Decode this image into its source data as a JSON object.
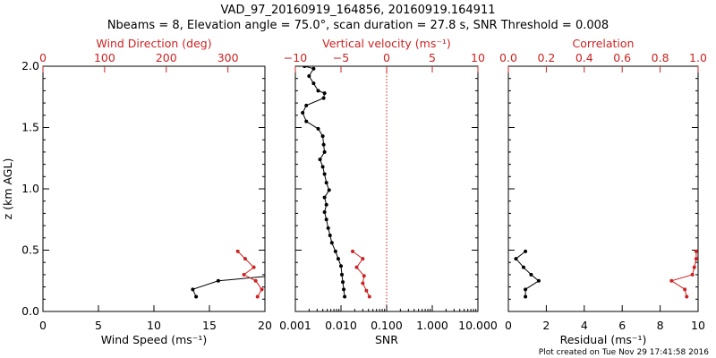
{
  "header": {
    "line1": "VAD_97_20160919_164856, 20160919.164911",
    "line2": "Nbeams = 8, Elevation angle = 75.0°, scan duration = 27.8 s, SNR Threshold = 0.008"
  },
  "footer": "Plot created on Tue Nov 29 17:41:58 2016",
  "colors": {
    "primary": "#000000",
    "secondary": "#cc2222"
  },
  "chart_data": [
    {
      "type": "line",
      "id": "wind",
      "ylabel": "z (km AGL)",
      "ylim": [
        0,
        2.0
      ],
      "yticks": [
        0.0,
        0.5,
        1.0,
        1.5,
        2.0
      ],
      "ytick_labels": [
        "0.0",
        "0.5",
        "1.0",
        "1.5",
        "2.0"
      ],
      "xlabel": "Wind Speed (ms⁻¹)",
      "xlim": [
        0,
        20
      ],
      "xticks": [
        0,
        5,
        10,
        15,
        20
      ],
      "xtick_labels": [
        "0",
        "5",
        "10",
        "15",
        "20"
      ],
      "x2label": "Wind Direction (deg)",
      "x2lim": [
        0,
        360
      ],
      "x2ticks": [
        0,
        100,
        200,
        300
      ],
      "x2tick_labels": [
        "0",
        "100",
        "200",
        "300"
      ],
      "series": [
        {
          "axis": "bottom",
          "color": "#000000",
          "points": [
            [
              13.8,
              0.12
            ],
            [
              13.5,
              0.18
            ],
            [
              15.8,
              0.25
            ],
            [
              20.5,
              0.29
            ]
          ]
        },
        {
          "axis": "top",
          "color": "#cc2222",
          "points": [
            [
              348,
              0.12
            ],
            [
              355,
              0.18
            ],
            [
              345,
              0.25
            ],
            [
              326,
              0.3
            ],
            [
              342,
              0.36
            ],
            [
              328,
              0.43
            ],
            [
              316,
              0.49
            ]
          ]
        }
      ]
    },
    {
      "type": "line",
      "id": "vertical",
      "ylim": [
        0,
        2.0
      ],
      "yticks": [
        0.0,
        0.5,
        1.0,
        1.5,
        2.0
      ],
      "xlabel": "SNR",
      "xscale": "log",
      "xlim": [
        0.001,
        10
      ],
      "xticks": [
        0.001,
        0.01,
        0.1,
        1,
        10
      ],
      "xtick_labels": [
        "0.001",
        "0.010",
        "0.100",
        "1.000",
        "10.000"
      ],
      "x2label": "Vertical velocity (ms⁻¹)",
      "x2lim": [
        -10,
        10
      ],
      "x2ticks": [
        -10,
        -5,
        0,
        5,
        10
      ],
      "x2tick_labels": [
        "−10",
        "−5",
        "0",
        "5",
        "10"
      ],
      "zero_line": 0,
      "series": [
        {
          "axis": "top",
          "color": "#000000",
          "points": [
            [
              -4.6,
              0.12
            ],
            [
              -4.7,
              0.18
            ],
            [
              -4.8,
              0.24
            ],
            [
              -4.9,
              0.3
            ],
            [
              -5.0,
              0.37
            ],
            [
              -5.3,
              0.43
            ],
            [
              -5.6,
              0.49
            ],
            [
              -6.0,
              0.56
            ],
            [
              -6.2,
              0.62
            ],
            [
              -6.4,
              0.68
            ],
            [
              -6.6,
              0.75
            ],
            [
              -6.8,
              0.81
            ],
            [
              -6.6,
              0.87
            ],
            [
              -6.8,
              0.93
            ],
            [
              -6.3,
              0.99
            ],
            [
              -6.6,
              1.05
            ],
            [
              -6.8,
              1.12
            ],
            [
              -7.0,
              1.18
            ],
            [
              -7.3,
              1.24
            ],
            [
              -6.8,
              1.3
            ],
            [
              -6.9,
              1.36
            ],
            [
              -7.0,
              1.43
            ],
            [
              -7.5,
              1.49
            ],
            [
              -8.8,
              1.55
            ],
            [
              -9.2,
              1.62
            ],
            [
              -8.8,
              1.68
            ],
            [
              -6.9,
              1.74
            ],
            [
              -6.8,
              1.78
            ],
            [
              -7.5,
              1.8
            ],
            [
              -8.0,
              1.86
            ],
            [
              -8.5,
              1.92
            ],
            [
              -8.0,
              1.98
            ],
            [
              -9.0,
              2.0
            ]
          ]
        },
        {
          "axis": "bottom",
          "color": "#cc2222",
          "points": [
            [
              0.042,
              0.12
            ],
            [
              0.036,
              0.17
            ],
            [
              0.03,
              0.23
            ],
            [
              0.032,
              0.29
            ],
            [
              0.022,
              0.36
            ],
            [
              0.03,
              0.43
            ],
            [
              0.018,
              0.49
            ]
          ]
        }
      ]
    },
    {
      "type": "line",
      "id": "residual",
      "ylim": [
        0,
        2.0
      ],
      "yticks": [
        0.0,
        0.5,
        1.0,
        1.5,
        2.0
      ],
      "xlabel": "Residual (ms⁻¹)",
      "xlim": [
        0,
        10
      ],
      "xticks": [
        0,
        2,
        4,
        6,
        8,
        10
      ],
      "xtick_labels": [
        "0",
        "2",
        "4",
        "6",
        "8",
        "10"
      ],
      "x2label": "Correlation",
      "x2lim": [
        0.0,
        1.0
      ],
      "x2ticks": [
        0.0,
        0.2,
        0.4,
        0.6,
        0.8,
        1.0
      ],
      "x2tick_labels": [
        "0.0",
        "0.2",
        "0.4",
        "0.6",
        "0.8",
        "1.0"
      ],
      "series": [
        {
          "axis": "bottom",
          "color": "#000000",
          "points": [
            [
              0.9,
              0.12
            ],
            [
              0.9,
              0.18
            ],
            [
              1.6,
              0.25
            ],
            [
              1.2,
              0.3
            ],
            [
              0.8,
              0.36
            ],
            [
              0.4,
              0.43
            ],
            [
              0.9,
              0.49
            ]
          ]
        },
        {
          "axis": "top",
          "color": "#cc2222",
          "points": [
            [
              0.94,
              0.12
            ],
            [
              0.93,
              0.18
            ],
            [
              0.86,
              0.25
            ],
            [
              0.97,
              0.3
            ],
            [
              0.98,
              0.36
            ],
            [
              0.99,
              0.43
            ],
            [
              0.99,
              0.49
            ]
          ]
        }
      ]
    }
  ]
}
